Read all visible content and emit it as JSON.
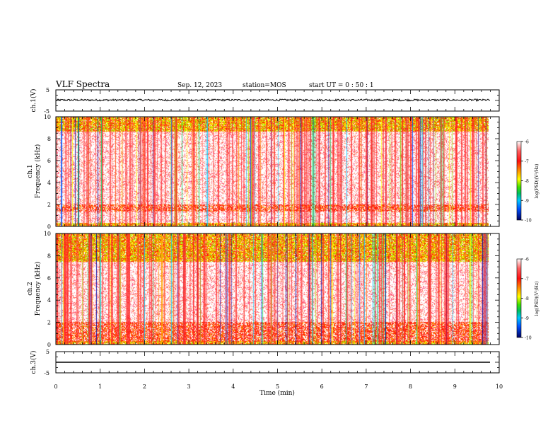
{
  "header": {
    "title": "VLF Spectra",
    "date": "Sep. 12, 2023",
    "station": "station=MOS",
    "start_ut": "start UT =  0 : 50 : 1"
  },
  "colors": {
    "background": "#ffffff",
    "axis": "#000000",
    "colormap": [
      "#0000a0",
      "#0050ff",
      "#00c8ff",
      "#00d060",
      "#a0e000",
      "#ffff00",
      "#ff9900",
      "#ff2000",
      "#ff6666",
      "#ffffff"
    ]
  },
  "chart_data": [
    {
      "type": "line",
      "panel": "ch1-waveform",
      "ylabel": "ch.1(V)",
      "xlim": [
        0,
        10
      ],
      "ylim": [
        -5,
        5
      ],
      "yticks": [
        "5",
        "-5"
      ],
      "series": [
        {
          "x": [
            0,
            9.8
          ],
          "y": [
            0.2,
            0.2
          ]
        }
      ],
      "grid": false
    },
    {
      "type": "heatmap",
      "panel": "ch1-spectrogram",
      "ylabel_line1": "ch.1",
      "ylabel_line2": "Frequency (kHz)",
      "xlim": [
        0,
        10
      ],
      "ylim": [
        0,
        10
      ],
      "yticks": [
        "0",
        "2",
        "4",
        "6",
        "8",
        "10"
      ],
      "data_extent_min": 9.8,
      "colorbar": {
        "label": "log(PSD)(V²/Hz)",
        "range": [
          -10,
          -6
        ],
        "ticks": [
          "-6",
          "-7",
          "-8",
          "-9",
          "-10"
        ]
      },
      "bands_khz": [
        {
          "from": 0,
          "to": 0.3,
          "level": "high"
        },
        {
          "from": 1.4,
          "to": 2.0,
          "level": "medium"
        },
        {
          "from": 8.7,
          "to": 10,
          "level": "high"
        }
      ]
    },
    {
      "type": "heatmap",
      "panel": "ch2-spectrogram",
      "ylabel_line1": "ch.2",
      "ylabel_line2": "Frequency (kHz)",
      "xlim": [
        0,
        10
      ],
      "ylim": [
        0,
        10
      ],
      "yticks": [
        "0",
        "2",
        "4",
        "6",
        "8",
        "10"
      ],
      "data_extent_min": 9.8,
      "colorbar": {
        "label": "log(PSD)(V²/Hz)",
        "range": [
          -10,
          -6
        ],
        "ticks": [
          "-6",
          "-7",
          "-8",
          "-9",
          "-10"
        ]
      },
      "bands_khz": [
        {
          "from": 0,
          "to": 0.3,
          "level": "high"
        },
        {
          "from": 0.3,
          "to": 2.0,
          "level": "medium"
        },
        {
          "from": 7.5,
          "to": 10,
          "level": "high"
        }
      ]
    },
    {
      "type": "line",
      "panel": "ch3-waveform",
      "ylabel": "ch.3(V)",
      "xlim": [
        0,
        10
      ],
      "ylim": [
        -5,
        5
      ],
      "yticks": [
        "5",
        "-5"
      ],
      "xlabel": "Time (min)",
      "xticks": [
        "0",
        "1",
        "2",
        "3",
        "4",
        "5",
        "6",
        "7",
        "8",
        "9",
        "10"
      ],
      "series": [
        {
          "x": [
            0,
            9.8
          ],
          "y": [
            0,
            0
          ]
        }
      ],
      "grid": false
    }
  ]
}
